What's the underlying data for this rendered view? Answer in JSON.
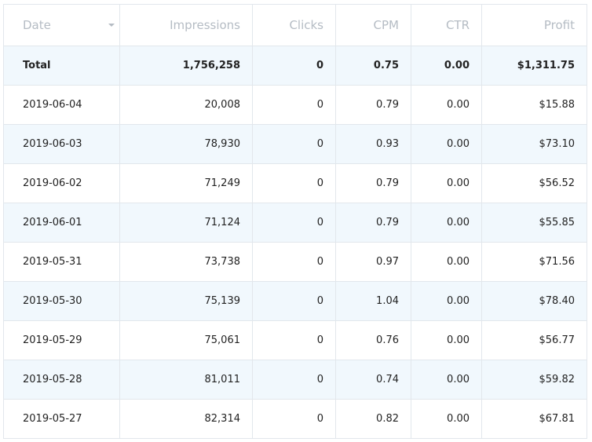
{
  "columns": {
    "date": "Date",
    "impressions": "Impressions",
    "clicks": "Clicks",
    "cpm": "CPM",
    "ctr": "CTR",
    "profit": "Profit"
  },
  "sort_icon": "sort-caret-down-icon",
  "total": {
    "label": "Total",
    "impressions": "1,756,258",
    "clicks": "0",
    "cpm": "0.75",
    "ctr": "0.00",
    "profit": "$1,311.75"
  },
  "rows": [
    {
      "date": "2019-06-04",
      "impressions": "20,008",
      "clicks": "0",
      "cpm": "0.79",
      "ctr": "0.00",
      "profit": "$15.88"
    },
    {
      "date": "2019-06-03",
      "impressions": "78,930",
      "clicks": "0",
      "cpm": "0.93",
      "ctr": "0.00",
      "profit": "$73.10"
    },
    {
      "date": "2019-06-02",
      "impressions": "71,249",
      "clicks": "0",
      "cpm": "0.79",
      "ctr": "0.00",
      "profit": "$56.52"
    },
    {
      "date": "2019-06-01",
      "impressions": "71,124",
      "clicks": "0",
      "cpm": "0.79",
      "ctr": "0.00",
      "profit": "$55.85"
    },
    {
      "date": "2019-05-31",
      "impressions": "73,738",
      "clicks": "0",
      "cpm": "0.97",
      "ctr": "0.00",
      "profit": "$71.56"
    },
    {
      "date": "2019-05-30",
      "impressions": "75,139",
      "clicks": "0",
      "cpm": "1.04",
      "ctr": "0.00",
      "profit": "$78.40"
    },
    {
      "date": "2019-05-29",
      "impressions": "75,061",
      "clicks": "0",
      "cpm": "0.76",
      "ctr": "0.00",
      "profit": "$56.77"
    },
    {
      "date": "2019-05-28",
      "impressions": "81,011",
      "clicks": "0",
      "cpm": "0.74",
      "ctr": "0.00",
      "profit": "$59.82"
    },
    {
      "date": "2019-05-27",
      "impressions": "82,314",
      "clicks": "0",
      "cpm": "0.82",
      "ctr": "0.00",
      "profit": "$67.81"
    }
  ]
}
